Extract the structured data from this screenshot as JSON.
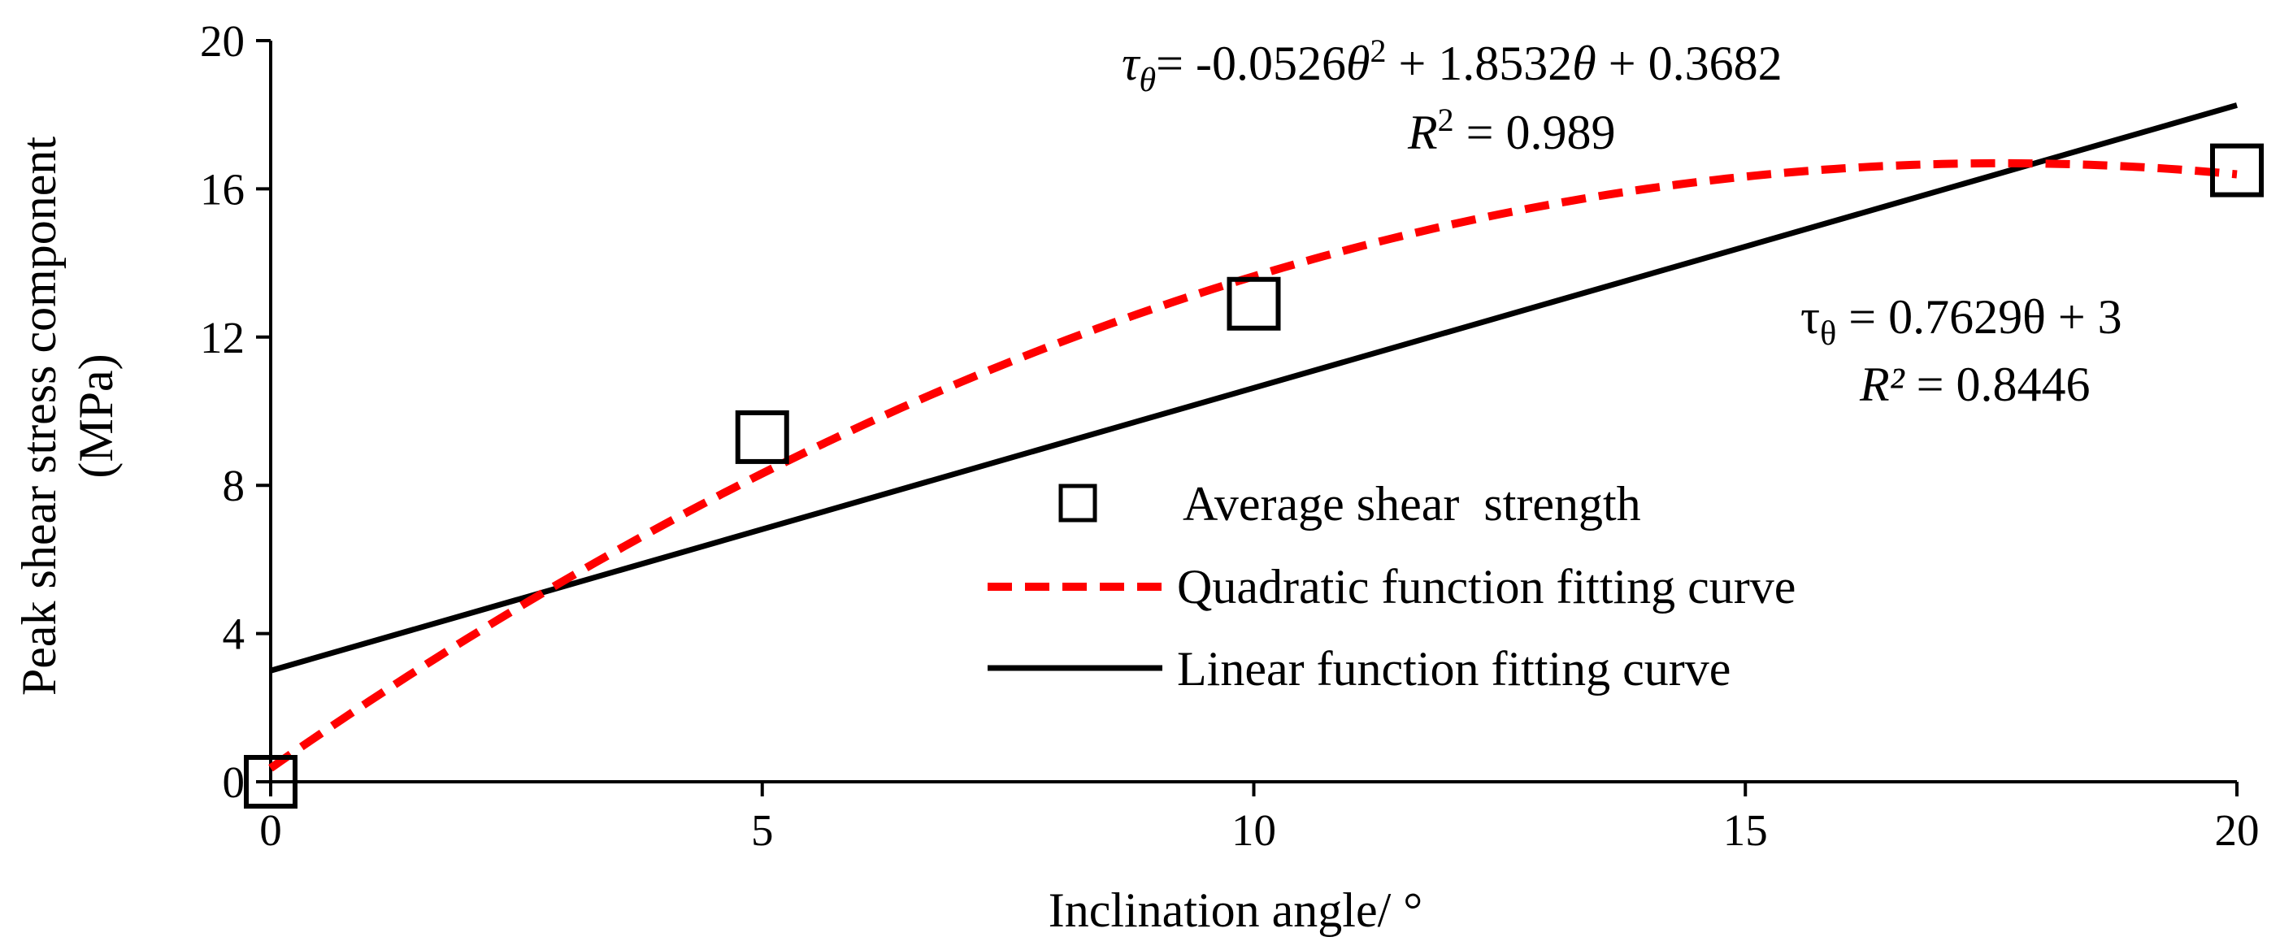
{
  "chart_data": {
    "type": "scatter",
    "title": "",
    "xlabel": "Inclination angle/ °",
    "ylabel_line1": "Peak shear stress component",
    "ylabel_line2": "(MPa)",
    "xlim": [
      0,
      20
    ],
    "ylim": [
      0,
      20
    ],
    "x_ticks": [
      0,
      5,
      10,
      15,
      20
    ],
    "y_ticks": [
      0,
      4,
      8,
      12,
      16,
      20
    ],
    "grid": false,
    "series": [
      {
        "name": "Average shear  strength",
        "kind": "scatter",
        "marker": "open-square",
        "x": [
          0,
          5,
          10,
          20
        ],
        "y": [
          0,
          9.3,
          12.9,
          16.5
        ]
      },
      {
        "name": "Quadratic function fitting curve",
        "kind": "line",
        "style": "dashed",
        "color": "#ff0000",
        "coefficients": [
          -0.0526,
          1.8532,
          0.3682
        ],
        "x_range": [
          0,
          20
        ]
      },
      {
        "name": "Linear function fitting curve",
        "kind": "line",
        "style": "solid",
        "color": "#000000",
        "slope": 0.7629,
        "intercept": 3,
        "x_range": [
          0,
          20
        ]
      }
    ],
    "annotations": {
      "quadratic": {
        "tau": "τ",
        "sub": "θ",
        "rest_a": "= -0.0526",
        "theta": "θ",
        "power": "2",
        "rest_b": " + 1.8532",
        "theta2": "θ",
        "rest_c": " + 0.3682",
        "r2_label": "R",
        "r2_sup": "2",
        "r2_value": " = 0.989"
      },
      "linear": {
        "tau": "τ",
        "sub": "θ",
        "rest": " = 0.7629θ + 3",
        "r2_label": "R²",
        "r2_value": " = 0.8446"
      }
    },
    "legend_position": "center-right"
  }
}
